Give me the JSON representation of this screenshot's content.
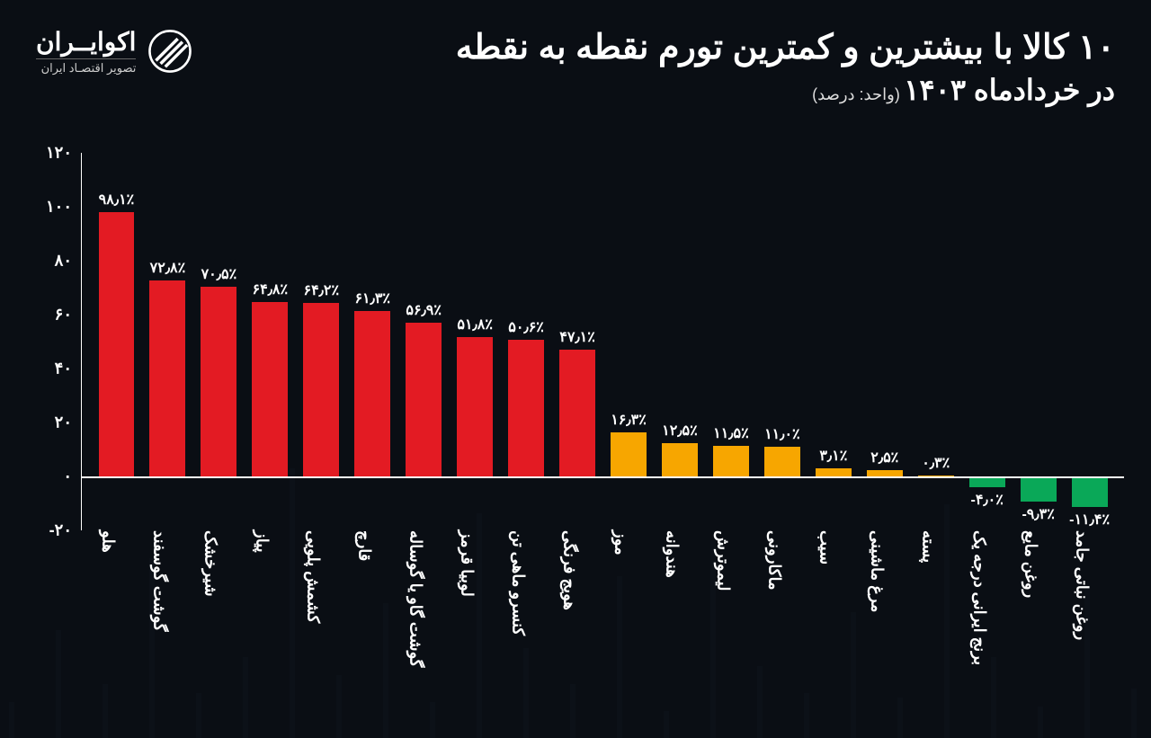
{
  "brand": {
    "name": "اکوایــران",
    "tagline": "تصویر اقتصـاد ایران"
  },
  "title": {
    "line1": "۱۰ کالا با بیشترین و کمترین تورم نقطه به نقطه",
    "line2_prefix": "در خردادماه ۱۴۰۳",
    "unit": "(واحد: درصد)"
  },
  "chart": {
    "type": "bar",
    "ylim": [
      -20,
      120
    ],
    "baseline": 0,
    "yticks": [
      -20,
      0,
      20,
      40,
      60,
      80,
      100,
      120
    ],
    "ytick_labels": [
      "-۲۰",
      "۰",
      "۲۰",
      "۴۰",
      "۶۰",
      "۸۰",
      "۱۰۰",
      "۱۲۰"
    ],
    "axis_color": "#ffffff",
    "background_color": "#0a0e14",
    "bar_width_pct": 70,
    "label_fontsize": 16,
    "axis_fontsize": 18,
    "colors": {
      "high": "#e31b23",
      "low_pos": "#f7a600",
      "low_neg": "#0aa858"
    },
    "bars": [
      {
        "label": "هلو",
        "value": 98.1,
        "display": "۹۸٫۱٪",
        "group": "high"
      },
      {
        "label": "گوشت گوسفند",
        "value": 72.8,
        "display": "۷۲٫۸٪",
        "group": "high"
      },
      {
        "label": "شیرخشک",
        "value": 70.5,
        "display": "۷۰٫۵٪",
        "group": "high"
      },
      {
        "label": "پیاز",
        "value": 64.8,
        "display": "۶۴٫۸٪",
        "group": "high"
      },
      {
        "label": "کشمش پلویی",
        "value": 64.2,
        "display": "۶۴٫۲٪",
        "group": "high"
      },
      {
        "label": "قارچ",
        "value": 61.3,
        "display": "۶۱٫۳٪",
        "group": "high"
      },
      {
        "label": "گوشت گاو یا گوساله",
        "value": 56.9,
        "display": "۵۶٫۹٪",
        "group": "high"
      },
      {
        "label": "لوبیا قرمز",
        "value": 51.8,
        "display": "۵۱٫۸٪",
        "group": "high"
      },
      {
        "label": "کنسرو ماهی تن",
        "value": 50.6,
        "display": "۵۰٫۶٪",
        "group": "high"
      },
      {
        "label": "هویج فرنگی",
        "value": 47.1,
        "display": "۴۷٫۱٪",
        "group": "high"
      },
      {
        "label": "موز",
        "value": 16.3,
        "display": "۱۶٫۳٪",
        "group": "low_pos"
      },
      {
        "label": "هندوانه",
        "value": 12.5,
        "display": "۱۲٫۵٪",
        "group": "low_pos"
      },
      {
        "label": "لیموترش",
        "value": 11.5,
        "display": "۱۱٫۵٪",
        "group": "low_pos"
      },
      {
        "label": "ماکارونی",
        "value": 11.0,
        "display": "۱۱٫۰٪",
        "group": "low_pos"
      },
      {
        "label": "سیب",
        "value": 3.1,
        "display": "۳٫۱٪",
        "group": "low_pos"
      },
      {
        "label": "مرغ ماشینی",
        "value": 2.5,
        "display": "۲٫۵٪",
        "group": "low_pos"
      },
      {
        "label": "پسته",
        "value": 0.3,
        "display": "۰٫۳٪",
        "group": "low_pos"
      },
      {
        "label": "برنج ایرانی درجه یک",
        "value": -4.0,
        "display": "-۴٫۰٪",
        "group": "low_neg"
      },
      {
        "label": "روغن مایع",
        "value": -9.3,
        "display": "-۹٫۳٪",
        "group": "low_neg"
      },
      {
        "label": "روغن نباتی جامد",
        "value": -11.4,
        "display": "-۱۱٫۴٪",
        "group": "low_neg"
      }
    ]
  }
}
